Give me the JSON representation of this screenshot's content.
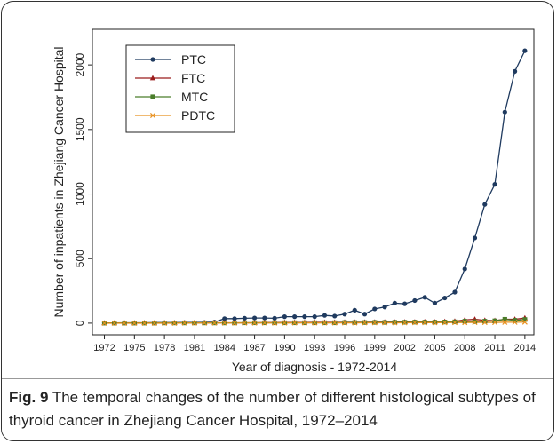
{
  "chart_data": {
    "type": "line",
    "x": [
      1972,
      1973,
      1974,
      1975,
      1976,
      1977,
      1978,
      1979,
      1980,
      1981,
      1982,
      1983,
      1984,
      1985,
      1986,
      1987,
      1988,
      1989,
      1990,
      1991,
      1992,
      1993,
      1994,
      1995,
      1996,
      1997,
      1998,
      1999,
      2000,
      2001,
      2002,
      2003,
      2004,
      2005,
      2006,
      2007,
      2008,
      2009,
      2010,
      2011,
      2012,
      2013,
      2014
    ],
    "series": [
      {
        "name": "PTC",
        "color": "#1f3a5f",
        "marker": "circle",
        "values": [
          2,
          2,
          3,
          3,
          3,
          4,
          4,
          4,
          5,
          5,
          6,
          8,
          35,
          35,
          38,
          40,
          40,
          38,
          50,
          50,
          50,
          50,
          60,
          55,
          70,
          100,
          70,
          110,
          125,
          155,
          150,
          175,
          200,
          155,
          195,
          240,
          420,
          660,
          920,
          1075,
          1635,
          1950,
          2110
        ]
      },
      {
        "name": "FTC",
        "color": "#9b1c1c",
        "marker": "triangle",
        "values": [
          1,
          1,
          1,
          1,
          2,
          1,
          2,
          2,
          2,
          2,
          2,
          3,
          3,
          3,
          3,
          3,
          4,
          4,
          5,
          5,
          5,
          6,
          6,
          6,
          7,
          7,
          7,
          8,
          8,
          8,
          9,
          9,
          10,
          9,
          12,
          15,
          25,
          30,
          22,
          20,
          30,
          30,
          40
        ]
      },
      {
        "name": "MTC",
        "color": "#4a7d2a",
        "marker": "square",
        "values": [
          1,
          1,
          1,
          1,
          1,
          1,
          2,
          2,
          2,
          2,
          2,
          2,
          2,
          2,
          3,
          3,
          3,
          3,
          3,
          3,
          3,
          3,
          3,
          3,
          5,
          5,
          5,
          6,
          6,
          7,
          7,
          8,
          8,
          8,
          9,
          10,
          15,
          12,
          15,
          18,
          30,
          22,
          28
        ]
      },
      {
        "name": "PDTC",
        "color": "#e8901e",
        "marker": "x",
        "values": [
          0,
          0,
          0,
          0,
          0,
          0,
          0,
          0,
          1,
          1,
          1,
          1,
          1,
          1,
          1,
          1,
          1,
          1,
          1,
          2,
          2,
          2,
          2,
          2,
          2,
          2,
          3,
          3,
          3,
          3,
          3,
          4,
          4,
          4,
          4,
          5,
          5,
          6,
          6,
          6,
          7,
          7,
          8
        ]
      }
    ],
    "xlim": [
      1970.8,
      2014.9
    ],
    "xticks": [
      1972,
      1975,
      1978,
      1981,
      1984,
      1987,
      1990,
      1993,
      1996,
      1999,
      2002,
      2005,
      2008,
      2011,
      2014
    ],
    "ylim": [
      -90,
      2276
    ],
    "yticks": [
      0,
      500,
      1000,
      1500,
      2000
    ],
    "xlabel": "Year of diagnosis - 1972-2014",
    "ylabel": "Number of inpatients in Zhejiang Cancer Hospital",
    "legend": "upper left",
    "caption_label": "Fig. 9",
    "caption_text": "The temporal changes of the number of different histological subtypes of thyroid cancer in Zhejiang Cancer Hospital, 1972–2014"
  }
}
